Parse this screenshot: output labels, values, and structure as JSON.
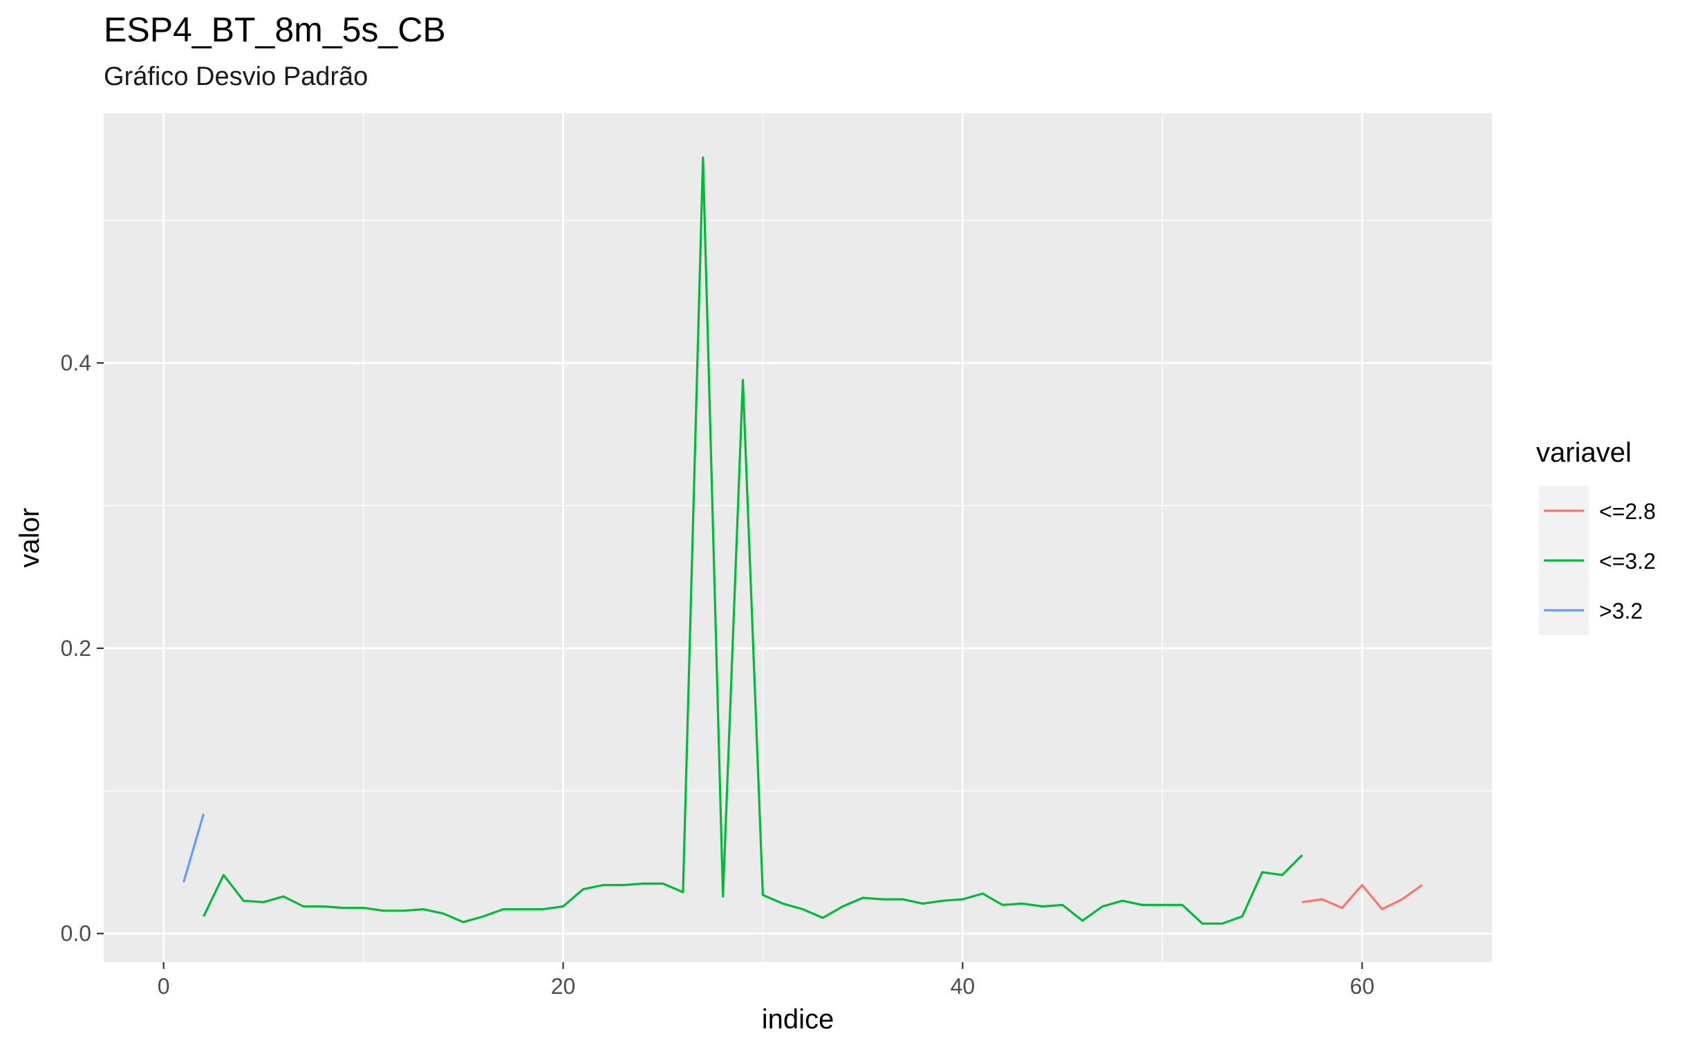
{
  "chart_data": {
    "type": "line",
    "title": "ESP4_BT_8m_5s_CB",
    "subtitle": "Gráfico Desvio Padrão",
    "xlabel": "indice",
    "ylabel": "valor",
    "xlim": [
      -3,
      66.5
    ],
    "ylim": [
      -0.02,
      0.575
    ],
    "x_ticks": [
      0,
      20,
      40,
      60
    ],
    "x_tick_labels": [
      "0",
      "20",
      "40",
      "60"
    ],
    "y_ticks": [
      0.0,
      0.2,
      0.4
    ],
    "y_tick_labels": [
      "0.0",
      "0.2",
      "0.4"
    ],
    "grid": true,
    "legend": {
      "title": "variavel",
      "position": "right"
    },
    "series": [
      {
        "name": "<=2.8",
        "color": "#F8766D",
        "x": [
          57,
          58,
          59,
          60,
          61,
          62,
          63
        ],
        "y": [
          0.022,
          0.024,
          0.018,
          0.034,
          0.017,
          0.024,
          0.034
        ]
      },
      {
        "name": "<=3.2",
        "color": "#00BA38",
        "x": [
          2,
          3,
          4,
          5,
          6,
          7,
          8,
          9,
          10,
          11,
          12,
          13,
          14,
          15,
          16,
          17,
          18,
          19,
          20,
          21,
          22,
          23,
          24,
          25,
          26,
          27,
          28,
          29,
          30,
          31,
          32,
          33,
          34,
          35,
          36,
          37,
          38,
          39,
          40,
          41,
          42,
          43,
          44,
          45,
          46,
          47,
          48,
          49,
          50,
          51,
          52,
          53,
          54,
          55,
          56,
          57
        ],
        "y": [
          0.012,
          0.041,
          0.023,
          0.022,
          0.026,
          0.019,
          0.019,
          0.018,
          0.018,
          0.016,
          0.016,
          0.017,
          0.014,
          0.008,
          0.012,
          0.017,
          0.017,
          0.017,
          0.019,
          0.031,
          0.034,
          0.034,
          0.035,
          0.035,
          0.029,
          0.544,
          0.026,
          0.388,
          0.027,
          0.021,
          0.017,
          0.011,
          0.019,
          0.025,
          0.024,
          0.024,
          0.021,
          0.023,
          0.024,
          0.028,
          0.02,
          0.021,
          0.019,
          0.02,
          0.009,
          0.019,
          0.023,
          0.02,
          0.02,
          0.02,
          0.007,
          0.007,
          0.012,
          0.043,
          0.041,
          0.055
        ]
      },
      {
        "name": ">3.2",
        "color": "#619CFF",
        "x": [
          1,
          2
        ],
        "y": [
          0.036,
          0.084
        ]
      }
    ]
  }
}
